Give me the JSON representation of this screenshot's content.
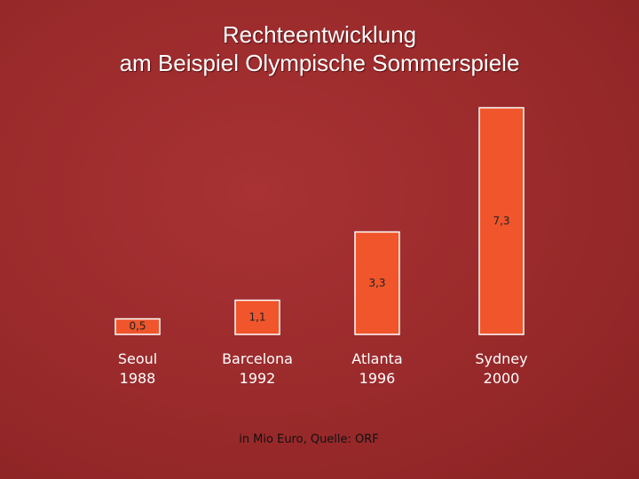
{
  "chart_data": {
    "type": "bar",
    "title": "Rechteentwicklung",
    "subtitle": "am Beispiel Olympische Sommerspiele",
    "categories": [
      "Seoul\n1988",
      "Barcelona\n1992",
      "Atlanta\n1996",
      "Sydney\n2000"
    ],
    "values": [
      0.5,
      1.1,
      3.3,
      7.3
    ],
    "value_labels": [
      "0,5",
      "1,1",
      "3,3",
      "7,3"
    ],
    "color": "#f0552b",
    "annotation": "in Mio Euro, Quelle: ORF"
  }
}
